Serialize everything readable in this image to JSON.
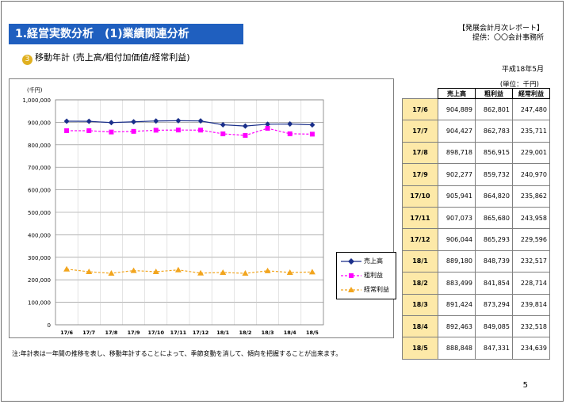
{
  "header": {
    "title": "1.経営実数分析　(1)業績関連分析",
    "report_name": "【発展会計月次レポート】",
    "provider": "提供：〇〇会計事務所",
    "date": "平成18年5月",
    "unit": "(単位：千円)"
  },
  "section": {
    "number": "③",
    "title": "移動年計 (売上高/粗付加価値/経常利益)"
  },
  "note": "注:年計表は一年間の推移を表し、移動年計することによって、季節変動を消して、傾向を把握することが出来ます。",
  "page_number": "5",
  "colors": {
    "title_bar": "#1f5fbf",
    "sales": "#1a2f8a",
    "gross": "#ff00ff",
    "ordinary": "#f2a51e",
    "row_label_bg": "#fde9a8"
  },
  "chart_data": {
    "type": "line",
    "y_unit_label": "(千円)",
    "categories": [
      "17/6",
      "17/7",
      "17/8",
      "17/9",
      "17/10",
      "17/11",
      "17/12",
      "18/1",
      "18/2",
      "18/3",
      "18/4",
      "18/5"
    ],
    "ylim": [
      0,
      1000000
    ],
    "yticks": [
      "0",
      "100,000",
      "200,000",
      "300,000",
      "400,000",
      "500,000",
      "600,000",
      "700,000",
      "800,000",
      "900,000",
      "1,000,000"
    ],
    "grid": true,
    "legend_position": "right",
    "series": [
      {
        "name": "売上高",
        "values": [
          904889,
          904427,
          898718,
          902277,
          905941,
          907073,
          906044,
          889180,
          883499,
          891424,
          892463,
          888848
        ]
      },
      {
        "name": "粗利益",
        "values": [
          862801,
          862783,
          856915,
          859732,
          864820,
          865680,
          865293,
          848739,
          841854,
          873294,
          849085,
          847331
        ]
      },
      {
        "name": "経常利益",
        "values": [
          247480,
          235711,
          229001,
          240970,
          235862,
          243958,
          229596,
          232517,
          228714,
          239814,
          232518,
          234639
        ]
      }
    ]
  },
  "table": {
    "headers": [
      "",
      "売上高",
      "粗利益",
      "経常利益"
    ],
    "rows": [
      {
        "label": "17/6",
        "sales": "904,889",
        "gross": "862,801",
        "ordinary": "247,480"
      },
      {
        "label": "17/7",
        "sales": "904,427",
        "gross": "862,783",
        "ordinary": "235,711"
      },
      {
        "label": "17/8",
        "sales": "898,718",
        "gross": "856,915",
        "ordinary": "229,001"
      },
      {
        "label": "17/9",
        "sales": "902,277",
        "gross": "859,732",
        "ordinary": "240,970"
      },
      {
        "label": "17/10",
        "sales": "905,941",
        "gross": "864,820",
        "ordinary": "235,862"
      },
      {
        "label": "17/11",
        "sales": "907,073",
        "gross": "865,680",
        "ordinary": "243,958"
      },
      {
        "label": "17/12",
        "sales": "906,044",
        "gross": "865,293",
        "ordinary": "229,596"
      },
      {
        "label": "18/1",
        "sales": "889,180",
        "gross": "848,739",
        "ordinary": "232,517"
      },
      {
        "label": "18/2",
        "sales": "883,499",
        "gross": "841,854",
        "ordinary": "228,714"
      },
      {
        "label": "18/3",
        "sales": "891,424",
        "gross": "873,294",
        "ordinary": "239,814"
      },
      {
        "label": "18/4",
        "sales": "892,463",
        "gross": "849,085",
        "ordinary": "232,518"
      },
      {
        "label": "18/5",
        "sales": "888,848",
        "gross": "847,331",
        "ordinary": "234,639"
      }
    ]
  }
}
